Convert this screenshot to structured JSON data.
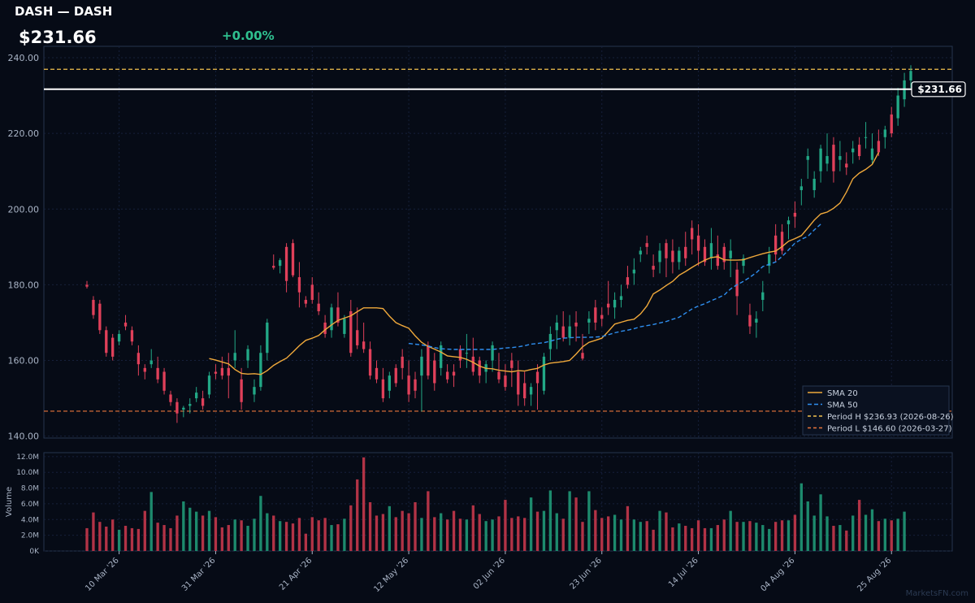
{
  "header": {
    "title": "DASH — DASH",
    "price": "$231.66",
    "change": "+0.00%"
  },
  "watermark": "MarketsFN.com",
  "colors": {
    "background": "#060b16",
    "panel_border": "#26354f",
    "grid": "#16203a",
    "up": "#22a886",
    "down": "#e0405a",
    "up_volume": "#1d8a6d",
    "down_volume": "#b23346",
    "sma20": "#f0a93b",
    "sma50": "#2f8ff0",
    "period_high": "#f2c14e",
    "period_low": "#e8743b",
    "price_line": "#ffffff",
    "axis_text": "#a9b4c6"
  },
  "chart_data": {
    "type": "candlestick",
    "price_axis": {
      "ylim": [
        139.5,
        243
      ],
      "ticks": [
        140,
        160,
        180,
        200,
        220,
        240
      ],
      "tick_labels": [
        "140.00",
        "160.00",
        "180.00",
        "200.00",
        "220.00",
        "240.00"
      ]
    },
    "volume_axis": {
      "ylabel": "Volume",
      "ylim": [
        0,
        12.5
      ],
      "ticks": [
        0,
        2,
        4,
        6,
        8,
        10,
        12
      ],
      "tick_labels": [
        "0K",
        "2.0M",
        "4.0M",
        "6.0M",
        "8.0M",
        "10.0M",
        "12.0M"
      ]
    },
    "x_ticks": [
      {
        "label": "10 Mar '26",
        "index": 5
      },
      {
        "label": "31 Mar '26",
        "index": 20
      },
      {
        "label": "21 Apr '26",
        "index": 35
      },
      {
        "label": "12 May '26",
        "index": 50
      },
      {
        "label": "02 Jun '26",
        "index": 65
      },
      {
        "label": "23 Jun '26",
        "index": 80
      },
      {
        "label": "14 Jul '26",
        "index": 95
      },
      {
        "label": "04 Aug '26",
        "index": 110
      },
      {
        "label": "25 Aug '26",
        "index": 125
      }
    ],
    "candles": [
      [
        180,
        181,
        179,
        179.5
      ],
      [
        176,
        177,
        171,
        172
      ],
      [
        175,
        176,
        167,
        168
      ],
      [
        168,
        169,
        161,
        162
      ],
      [
        166,
        167,
        160,
        161
      ],
      [
        165,
        168,
        164,
        167
      ],
      [
        170,
        172,
        168,
        169
      ],
      [
        168,
        169,
        164,
        165
      ],
      [
        162,
        164,
        156,
        159
      ],
      [
        158,
        159,
        155,
        157
      ],
      [
        159,
        163,
        158,
        160
      ],
      [
        158,
        161,
        154,
        155
      ],
      [
        157,
        158,
        151,
        152
      ],
      [
        151,
        152,
        148,
        149
      ],
      [
        149,
        150,
        143.5,
        146
      ],
      [
        147,
        148,
        145,
        147.5
      ],
      [
        148,
        150,
        146,
        148.5
      ],
      [
        150,
        153,
        149,
        151.5
      ],
      [
        150,
        152,
        147,
        148
      ],
      [
        151,
        157,
        150,
        156
      ],
      [
        157,
        159,
        155,
        156.5
      ],
      [
        158,
        161,
        155,
        156
      ],
      [
        158,
        162,
        150,
        156
      ],
      [
        160,
        168,
        158,
        162
      ],
      [
        155,
        158,
        147,
        149
      ],
      [
        160,
        164,
        158,
        163
      ],
      [
        151,
        155,
        149,
        153
      ],
      [
        153,
        164,
        152,
        162
      ],
      [
        162,
        171,
        160,
        170
      ],
      [
        185,
        188,
        184,
        184.5
      ],
      [
        185,
        187,
        183,
        186.5
      ],
      [
        190,
        191,
        178,
        181
      ],
      [
        191,
        192,
        182,
        182.5
      ],
      [
        182,
        186,
        174,
        178
      ],
      [
        176,
        177,
        174,
        175
      ],
      [
        180,
        182,
        175,
        176
      ],
      [
        175,
        178,
        172,
        173
      ],
      [
        170,
        172,
        166,
        167
      ],
      [
        168,
        175,
        166,
        174
      ],
      [
        174,
        178,
        169,
        170
      ],
      [
        167,
        172,
        166,
        171
      ],
      [
        173,
        176,
        161,
        162
      ],
      [
        168,
        174,
        163,
        164
      ],
      [
        165,
        170,
        162,
        163
      ],
      [
        163,
        165,
        155,
        156
      ],
      [
        158,
        160,
        154,
        155
      ],
      [
        155,
        158,
        149,
        150
      ],
      [
        152,
        157,
        150,
        156
      ],
      [
        158,
        159,
        153,
        154
      ],
      [
        161,
        163,
        155,
        158
      ],
      [
        156,
        160,
        149,
        151
      ],
      [
        155,
        157,
        150,
        152
      ],
      [
        156,
        163,
        146.5,
        161
      ],
      [
        164,
        165,
        155,
        156
      ],
      [
        160,
        162,
        152,
        154
      ],
      [
        158,
        165,
        156,
        164
      ],
      [
        157,
        159,
        154,
        155
      ],
      [
        157,
        159,
        153,
        156
      ],
      [
        163,
        164,
        158,
        160
      ],
      [
        162,
        167,
        158,
        162
      ],
      [
        161,
        166,
        156,
        157
      ],
      [
        160,
        161,
        154,
        156
      ],
      [
        157,
        160,
        154,
        159
      ],
      [
        160,
        165,
        157,
        164
      ],
      [
        157,
        162,
        154,
        155
      ],
      [
        156,
        159,
        152,
        153
      ],
      [
        160,
        162,
        153,
        158
      ],
      [
        157,
        160,
        148,
        151
      ],
      [
        154,
        157,
        148,
        150
      ],
      [
        151,
        154,
        148,
        153
      ],
      [
        157,
        159,
        147,
        154
      ],
      [
        152,
        162,
        151,
        161
      ],
      [
        163,
        169,
        160,
        167
      ],
      [
        168,
        172,
        163,
        170
      ],
      [
        169,
        173,
        165,
        166
      ],
      [
        166,
        172,
        164,
        169
      ],
      [
        170,
        173,
        165,
        169
      ],
      [
        162,
        167,
        160,
        160.5
      ],
      [
        170,
        173,
        167,
        171
      ],
      [
        174,
        176,
        168,
        170
      ],
      [
        172,
        174,
        169,
        171
      ],
      [
        175,
        181,
        172,
        174
      ],
      [
        174,
        178,
        171,
        176
      ],
      [
        176,
        180,
        174,
        177
      ],
      [
        182,
        185,
        179,
        180
      ],
      [
        183,
        187,
        180,
        184
      ],
      [
        188,
        190,
        186,
        189
      ],
      [
        191,
        193,
        188,
        190
      ],
      [
        185,
        188,
        182,
        184
      ],
      [
        186,
        191,
        183,
        189
      ],
      [
        191,
        192,
        182,
        187
      ],
      [
        189,
        192,
        183,
        186
      ],
      [
        186,
        190,
        184,
        189
      ],
      [
        190,
        194,
        185,
        187
      ],
      [
        195,
        197,
        188,
        192
      ],
      [
        193,
        196,
        185,
        189
      ],
      [
        190,
        192,
        185,
        186
      ],
      [
        187,
        195,
        184,
        191
      ],
      [
        188,
        193,
        184,
        185
      ],
      [
        190,
        191,
        184,
        186
      ],
      [
        187,
        192,
        182,
        189
      ],
      [
        184,
        186,
        172,
        177
      ],
      [
        185,
        188,
        183,
        187
      ],
      [
        172,
        175,
        167,
        169
      ],
      [
        170,
        173,
        166,
        171
      ],
      [
        176,
        181,
        173,
        178
      ],
      [
        185,
        190,
        183,
        188
      ],
      [
        193,
        196,
        186,
        188
      ],
      [
        194,
        196,
        188,
        189
      ],
      [
        196,
        198,
        192,
        197
      ],
      [
        199,
        202,
        195,
        198
      ],
      [
        205,
        208,
        201,
        206
      ],
      [
        213,
        216,
        208,
        214
      ],
      [
        205,
        210,
        203,
        208
      ],
      [
        210,
        217,
        207,
        216
      ],
      [
        212,
        220,
        210,
        214
      ],
      [
        217,
        219,
        207,
        210
      ],
      [
        213,
        218,
        210,
        214
      ],
      [
        212,
        215,
        209,
        211
      ],
      [
        215,
        218,
        212,
        216
      ],
      [
        217,
        219,
        213,
        214
      ],
      [
        219,
        223,
        216,
        219
      ],
      [
        213,
        220,
        212,
        216
      ],
      [
        218,
        221,
        214,
        215
      ],
      [
        219,
        222,
        216,
        221
      ],
      [
        225,
        227,
        219,
        220
      ],
      [
        224,
        232,
        222,
        230
      ],
      [
        229,
        236,
        227,
        234
      ],
      [
        234,
        238,
        232,
        236.5
      ]
    ],
    "volume_millions": [
      2.9,
      4.9,
      3.7,
      3.1,
      4.0,
      2.7,
      3.2,
      2.9,
      2.8,
      5.1,
      7.5,
      3.6,
      3.3,
      2.9,
      4.5,
      6.3,
      5.5,
      5.0,
      4.5,
      5.1,
      4.3,
      3.0,
      3.3,
      4.0,
      3.9,
      3.2,
      4.1,
      7.0,
      4.8,
      4.5,
      3.8,
      3.7,
      3.5,
      4.2,
      2.2,
      4.3,
      3.9,
      4.2,
      3.3,
      3.4,
      4.1,
      5.8,
      9.1,
      11.9,
      6.2,
      4.5,
      4.7,
      5.7,
      4.3,
      5.1,
      4.8,
      6.2,
      4.2,
      7.6,
      4.3,
      4.8,
      4.0,
      5.1,
      4.1,
      4.0,
      5.8,
      4.7,
      3.8,
      4.0,
      4.4,
      6.5,
      4.2,
      4.4,
      4.2,
      6.8,
      5.0,
      5.1,
      7.7,
      4.8,
      4.1,
      7.6,
      6.8,
      3.7,
      7.6,
      5.2,
      4.2,
      4.4,
      4.6,
      4.0,
      5.7,
      4.0,
      3.7,
      3.8,
      2.7,
      5.1,
      4.9,
      3.0,
      3.5,
      3.2,
      2.9,
      3.9,
      2.9,
      2.9,
      3.3,
      4.0,
      5.1,
      3.7,
      3.7,
      3.8,
      3.6,
      3.3,
      2.8,
      3.7,
      3.9,
      3.9,
      4.6,
      8.6,
      6.3,
      4.5,
      7.2,
      4.4,
      3.2,
      3.3,
      2.6,
      4.5,
      6.5,
      4.6,
      5.3,
      3.8,
      4.1,
      3.9,
      4.1,
      5.0
    ],
    "sma20": {
      "start_index": 19,
      "values": [
        160.5,
        160.1,
        159.6,
        159.1,
        157.6,
        156.6,
        156.4,
        156.5,
        156.3,
        157.3,
        158.7,
        159.7,
        160.6,
        162.2,
        163.9,
        165.3,
        165.9,
        166.6,
        168.1,
        169.4,
        170.6,
        171.2,
        171.8,
        172.9,
        173.9,
        173.9,
        173.9,
        173.7,
        171.7,
        170.0,
        169.2,
        168.5,
        166.5,
        164.8,
        163.7,
        163.0,
        162.2,
        161.2,
        161.0,
        160.8,
        160.3,
        159.5,
        158.5,
        157.9,
        157.8,
        157.4,
        157.2,
        157.0,
        157.3,
        157.2,
        157.6,
        157.9,
        158.8,
        159.3,
        159.5,
        159.7,
        160.0,
        161.7,
        163.6,
        164.8,
        165.3,
        165.9,
        167.7,
        169.6,
        170.1,
        170.6,
        170.9,
        172.3,
        174.4,
        177.6,
        178.6,
        179.8,
        180.9,
        182.5,
        183.5,
        184.6,
        185.6,
        186.5,
        187.2,
        187.4,
        186.6,
        186.5,
        186.5,
        186.6,
        187.2,
        187.7,
        188.2,
        188.6,
        188.9,
        190.1,
        191.5,
        192.2,
        193.0,
        195.0,
        197.1,
        198.7,
        199.2,
        200.2,
        201.6,
        204.5,
        208.0,
        209.5,
        210.5,
        211.8,
        215.0
      ]
    },
    "sma50": {
      "start_index": 50,
      "values": [
        164.5,
        164.3,
        164.1,
        163.8,
        163.4,
        163.1,
        163.0,
        162.9,
        162.9,
        162.9,
        162.9,
        162.9,
        162.9,
        162.9,
        163.1,
        163.3,
        163.4,
        163.6,
        163.9,
        164.3,
        164.5,
        164.7,
        165.1,
        165.6,
        165.9,
        166.0,
        166.1,
        166.1,
        166.1,
        166.2,
        166.3,
        166.8,
        167.3,
        167.7,
        168.0,
        168.4,
        168.9,
        169.2,
        169.5,
        169.9,
        170.3,
        170.9,
        171.4,
        172.5,
        173.6,
        174.4,
        175.0,
        175.8,
        176.5,
        177.3,
        178.9,
        180.0,
        180.9,
        182.0,
        183.2,
        184.8,
        185.4,
        186.0,
        187.5,
        189.2,
        191.0,
        192.0,
        192.8,
        194.5,
        196.0
      ]
    },
    "reference_lines": {
      "period_high": {
        "value": 236.93,
        "label": "Period H $236.93 (2026-08-26)"
      },
      "period_low": {
        "value": 146.6,
        "label": "Period L $146.60 (2026-03-27)"
      },
      "last_price": {
        "value": 231.66,
        "label": "$231.66"
      }
    },
    "legend": {
      "placement": "bottom-right",
      "entries": [
        "SMA 20",
        "SMA 50",
        "Period H $236.93 (2026-08-26)",
        "Period L $146.60 (2026-03-27)"
      ]
    },
    "grid": true
  }
}
